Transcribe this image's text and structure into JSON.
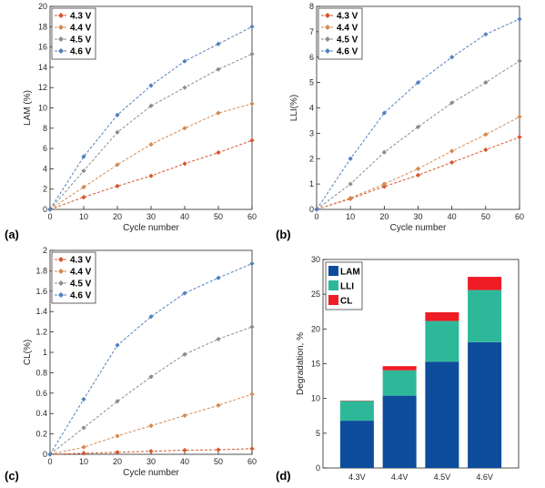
{
  "colors": {
    "4.3 V": "#d9542b",
    "4.4 V": "#d4894f",
    "4.5 V": "#8c8c8c",
    "4.6 V": "#4f81bd",
    "LAM": "#0e4c9c",
    "LLI": "#2eb89a",
    "CL": "#ee1c24"
  },
  "chart_data": [
    {
      "type": "line",
      "panel": "(a)",
      "xlabel": "Cycle number",
      "ylabel": "LAM (%)",
      "xlim": [
        0,
        60
      ],
      "ylim": [
        0,
        20
      ],
      "xticks": [
        "0",
        "10",
        "20",
        "30",
        "40",
        "50",
        "60"
      ],
      "yticks": [
        "0",
        "2",
        "4",
        "6",
        "8",
        "10",
        "12",
        "14",
        "16",
        "18",
        "20"
      ],
      "legend": "top-left",
      "x": [
        0,
        10,
        20,
        30,
        40,
        50,
        60
      ],
      "series": [
        {
          "name": "4.3 V",
          "values": [
            0,
            1.2,
            2.3,
            3.3,
            4.5,
            5.6,
            6.8
          ]
        },
        {
          "name": "4.4 V",
          "values": [
            0,
            2.2,
            4.4,
            6.4,
            8.0,
            9.5,
            10.4
          ]
        },
        {
          "name": "4.5 V",
          "values": [
            0,
            3.8,
            7.6,
            10.2,
            12.0,
            13.8,
            15.3
          ]
        },
        {
          "name": "4.6 V",
          "values": [
            0,
            5.2,
            9.3,
            12.2,
            14.6,
            16.3,
            18.0
          ]
        }
      ]
    },
    {
      "type": "line",
      "panel": "(b)",
      "xlabel": "Cycle number",
      "ylabel": "LLI(%)",
      "xlim": [
        0,
        60
      ],
      "ylim": [
        0,
        8
      ],
      "xticks": [
        "0",
        "10",
        "20",
        "30",
        "40",
        "50",
        "60"
      ],
      "yticks": [
        "0",
        "1",
        "2",
        "3",
        "4",
        "5",
        "6",
        "7",
        "8"
      ],
      "legend": "top-left",
      "x": [
        0,
        10,
        20,
        30,
        40,
        50,
        60
      ],
      "series": [
        {
          "name": "4.3 V",
          "values": [
            0,
            0.42,
            0.9,
            1.35,
            1.85,
            2.35,
            2.85
          ]
        },
        {
          "name": "4.4 V",
          "values": [
            0,
            0.45,
            1.0,
            1.6,
            2.3,
            2.95,
            3.65
          ]
        },
        {
          "name": "4.5 V",
          "values": [
            0,
            1.0,
            2.25,
            3.25,
            4.2,
            5.0,
            5.85
          ]
        },
        {
          "name": "4.6 V",
          "values": [
            0,
            2.0,
            3.8,
            5.0,
            6.0,
            6.9,
            7.5
          ]
        }
      ]
    },
    {
      "type": "line",
      "panel": "(c)",
      "xlabel": "Cycle number",
      "ylabel": "CL(%)",
      "xlim": [
        0,
        60
      ],
      "ylim": [
        0,
        2
      ],
      "xticks": [
        "0",
        "10",
        "20",
        "30",
        "40",
        "50",
        "60"
      ],
      "yticks": [
        "0",
        "0.2",
        "0.4",
        "0.6",
        "0.8",
        "1",
        "1.2",
        "1.4",
        "1.6",
        "1.8",
        "2"
      ],
      "legend": "top-left",
      "x": [
        0,
        10,
        20,
        30,
        40,
        50,
        60
      ],
      "series": [
        {
          "name": "4.3 V",
          "values": [
            0,
            0.01,
            0.02,
            0.03,
            0.04,
            0.045,
            0.055
          ]
        },
        {
          "name": "4.4 V",
          "values": [
            0,
            0.07,
            0.18,
            0.28,
            0.38,
            0.48,
            0.59
          ]
        },
        {
          "name": "4.5 V",
          "values": [
            0,
            0.26,
            0.52,
            0.76,
            0.98,
            1.13,
            1.25
          ]
        },
        {
          "name": "4.6 V",
          "values": [
            0,
            0.54,
            1.07,
            1.35,
            1.58,
            1.73,
            1.87
          ]
        }
      ]
    },
    {
      "type": "bar",
      "stacked": true,
      "panel": "(d)",
      "xlabel": "",
      "ylabel": "Degradation, %",
      "ylim": [
        0,
        30
      ],
      "yticks": [
        "0",
        "5",
        "10",
        "15",
        "20",
        "25",
        "30"
      ],
      "legend": "top-left",
      "categories": [
        "4.3V",
        "4.4V",
        "4.5V",
        "4.6V"
      ],
      "series": [
        {
          "name": "LAM",
          "values": [
            6.8,
            10.4,
            15.3,
            18.1
          ]
        },
        {
          "name": "LLI",
          "values": [
            2.85,
            3.65,
            5.85,
            7.5
          ]
        },
        {
          "name": "CL",
          "values": [
            0.05,
            0.6,
            1.25,
            1.9
          ]
        }
      ]
    }
  ]
}
